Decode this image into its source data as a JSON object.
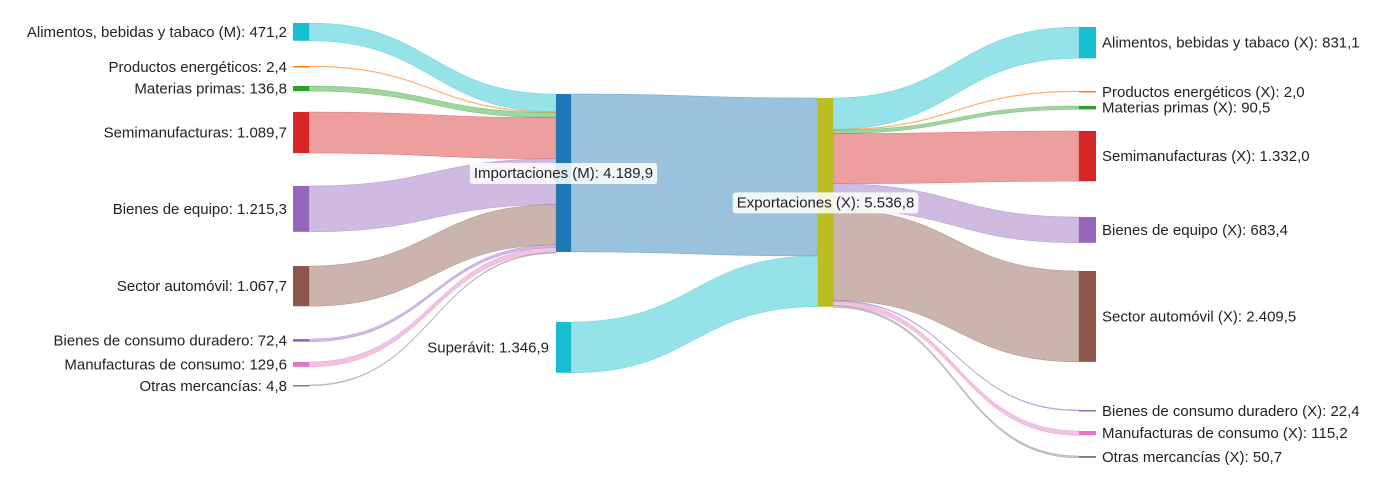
{
  "chart_data": {
    "type": "sankey",
    "nodes": [
      {
        "id": "imp_alim",
        "label": "Alimentos, bebidas y tabaco (M): 471,2",
        "value": 471.2,
        "color": "#17becf"
      },
      {
        "id": "imp_ener",
        "label": "Productos energéticos: 2,4",
        "value": 2.4,
        "color": "#ff7f0e"
      },
      {
        "id": "imp_mat",
        "label": "Materias primas: 136,8",
        "value": 136.8,
        "color": "#2ca02c"
      },
      {
        "id": "imp_semi",
        "label": "Semimanufacturas: 1.089,7",
        "value": 1089.7,
        "color": "#d62728"
      },
      {
        "id": "imp_equi",
        "label": "Bienes de equipo: 1.215,3",
        "value": 1215.3,
        "color": "#9467bd"
      },
      {
        "id": "imp_auto",
        "label": "Sector automóvil: 1.067,7",
        "value": 1067.7,
        "color": "#8c564b"
      },
      {
        "id": "imp_dur",
        "label": "Bienes de consumo duradero: 72,4",
        "value": 72.4,
        "color": "#9467bd"
      },
      {
        "id": "imp_manu",
        "label": "Manufacturas de consumo: 129,6",
        "value": 129.6,
        "color": "#e377c2"
      },
      {
        "id": "imp_otr",
        "label": "Otras mercancías: 4,8",
        "value": 4.8,
        "color": "#7f7f7f"
      },
      {
        "id": "importaciones",
        "label": "Importaciones (M): 4.189,9",
        "value": 4189.9,
        "color": "#1f77b4"
      },
      {
        "id": "superavit",
        "label": "Superávit: 1.346,9",
        "value": 1346.9,
        "color": "#17becf"
      },
      {
        "id": "exportaciones",
        "label": "Exportaciones (X): 5.536,8",
        "value": 5536.8,
        "color": "#bcbd22"
      },
      {
        "id": "exp_alim",
        "label": "Alimentos, bebidas y tabaco (X): 831,1",
        "value": 831.1,
        "color": "#17becf"
      },
      {
        "id": "exp_ener",
        "label": "Productos energéticos (X): 2,0",
        "value": 2.0,
        "color": "#ff7f0e"
      },
      {
        "id": "exp_mat",
        "label": "Materias primas (X): 90,5",
        "value": 90.5,
        "color": "#2ca02c"
      },
      {
        "id": "exp_semi",
        "label": "Semimanufacturas (X): 1.332,0",
        "value": 1332.0,
        "color": "#d62728"
      },
      {
        "id": "exp_equi",
        "label": "Bienes de equipo (X): 683,4",
        "value": 683.4,
        "color": "#9467bd"
      },
      {
        "id": "exp_auto",
        "label": "Sector automóvil (X): 2.409,5",
        "value": 2409.5,
        "color": "#8c564b"
      },
      {
        "id": "exp_dur",
        "label": "Bienes de consumo duradero (X): 22,4",
        "value": 22.4,
        "color": "#9467bd"
      },
      {
        "id": "exp_manu",
        "label": "Manufacturas de consumo (X): 115,2",
        "value": 115.2,
        "color": "#e377c2"
      },
      {
        "id": "exp_otr",
        "label": "Otras mercancías (X): 50,7",
        "value": 50.7,
        "color": "#7f7f7f"
      }
    ],
    "links": [
      {
        "source": "imp_alim",
        "target": "importaciones",
        "value": 471.2
      },
      {
        "source": "imp_ener",
        "target": "importaciones",
        "value": 2.4
      },
      {
        "source": "imp_mat",
        "target": "importaciones",
        "value": 136.8
      },
      {
        "source": "imp_semi",
        "target": "importaciones",
        "value": 1089.7
      },
      {
        "source": "imp_equi",
        "target": "importaciones",
        "value": 1215.3
      },
      {
        "source": "imp_auto",
        "target": "importaciones",
        "value": 1067.7
      },
      {
        "source": "imp_dur",
        "target": "importaciones",
        "value": 72.4
      },
      {
        "source": "imp_manu",
        "target": "importaciones",
        "value": 129.6
      },
      {
        "source": "imp_otr",
        "target": "importaciones",
        "value": 4.8
      },
      {
        "source": "importaciones",
        "target": "exportaciones",
        "value": 4189.9
      },
      {
        "source": "superavit",
        "target": "exportaciones",
        "value": 1346.9
      },
      {
        "source": "exportaciones",
        "target": "exp_alim",
        "value": 831.1
      },
      {
        "source": "exportaciones",
        "target": "exp_ener",
        "value": 2.0
      },
      {
        "source": "exportaciones",
        "target": "exp_mat",
        "value": 90.5
      },
      {
        "source": "exportaciones",
        "target": "exp_semi",
        "value": 1332.0
      },
      {
        "source": "exportaciones",
        "target": "exp_equi",
        "value": 683.4
      },
      {
        "source": "exportaciones",
        "target": "exp_auto",
        "value": 2409.5
      },
      {
        "source": "exportaciones",
        "target": "exp_dur",
        "value": 22.4
      },
      {
        "source": "exportaciones",
        "target": "exp_manu",
        "value": 115.2
      },
      {
        "source": "exportaciones",
        "target": "exp_otr",
        "value": 50.7
      }
    ]
  }
}
